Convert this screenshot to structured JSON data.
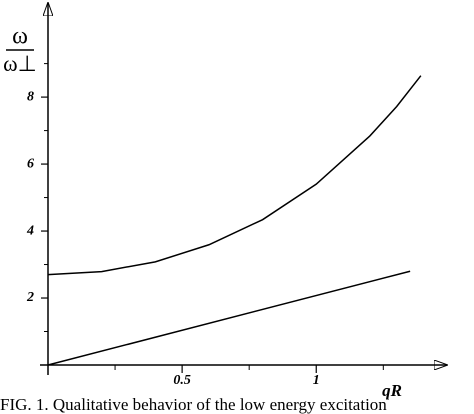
{
  "chart_data": {
    "type": "line",
    "y_label": {
      "numerator": "ω",
      "denominator": "ω⊥"
    },
    "x_label": "qR",
    "caption": "FIG. 1. Qualitative behavior of the low energy excitation",
    "xlim": [
      0,
      1.48
    ],
    "ylim": [
      0,
      10.75
    ],
    "xticks": [
      0.5,
      1
    ],
    "yticks": [
      2,
      4,
      6,
      8
    ],
    "xticks_minor": [
      0.25,
      0.75,
      1.25
    ],
    "yticks_minor": [
      1,
      3,
      5,
      7,
      9
    ],
    "series": [
      {
        "color": "#000000",
        "x": [
          0,
          0.2,
          0.4,
          0.6,
          0.8,
          1.0,
          1.2,
          1.3,
          1.39
        ],
        "values": [
          2.7,
          2.79,
          3.08,
          3.59,
          4.34,
          5.4,
          6.84,
          7.72,
          8.64
        ]
      },
      {
        "color": "#000000",
        "x": [
          0,
          1.35
        ],
        "values": [
          0,
          2.8
        ]
      }
    ]
  }
}
